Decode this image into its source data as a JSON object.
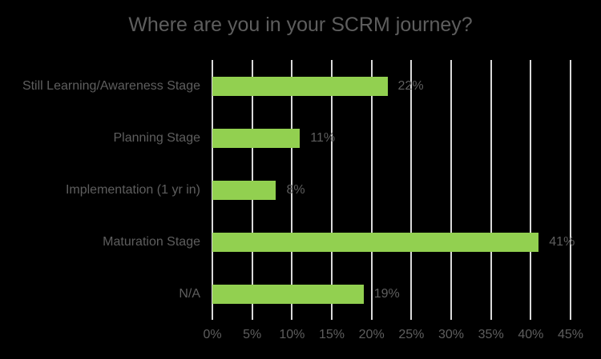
{
  "chart_data": {
    "type": "bar",
    "orientation": "horizontal",
    "title": "Where are you in your SCRM journey?",
    "categories": [
      "Still Learning/Awareness Stage",
      "Planning Stage",
      "Implementation (1 yr in)",
      "Maturation Stage",
      "N/A"
    ],
    "values": [
      22,
      11,
      8,
      41,
      19
    ],
    "data_labels": [
      "22%",
      "11%",
      "8%",
      "41%",
      "19%"
    ],
    "xlabel": "",
    "ylabel": "",
    "xlim": [
      0,
      45
    ],
    "x_tick_step": 5,
    "x_tick_labels": [
      "0%",
      "5%",
      "10%",
      "15%",
      "20%",
      "25%",
      "30%",
      "35%",
      "40%",
      "45%"
    ],
    "grid": true,
    "legend": "none",
    "colors": {
      "background": "#000000",
      "bar": "#92D050",
      "gridline": "#D9D9D9",
      "text": "#5E5E5E"
    }
  }
}
